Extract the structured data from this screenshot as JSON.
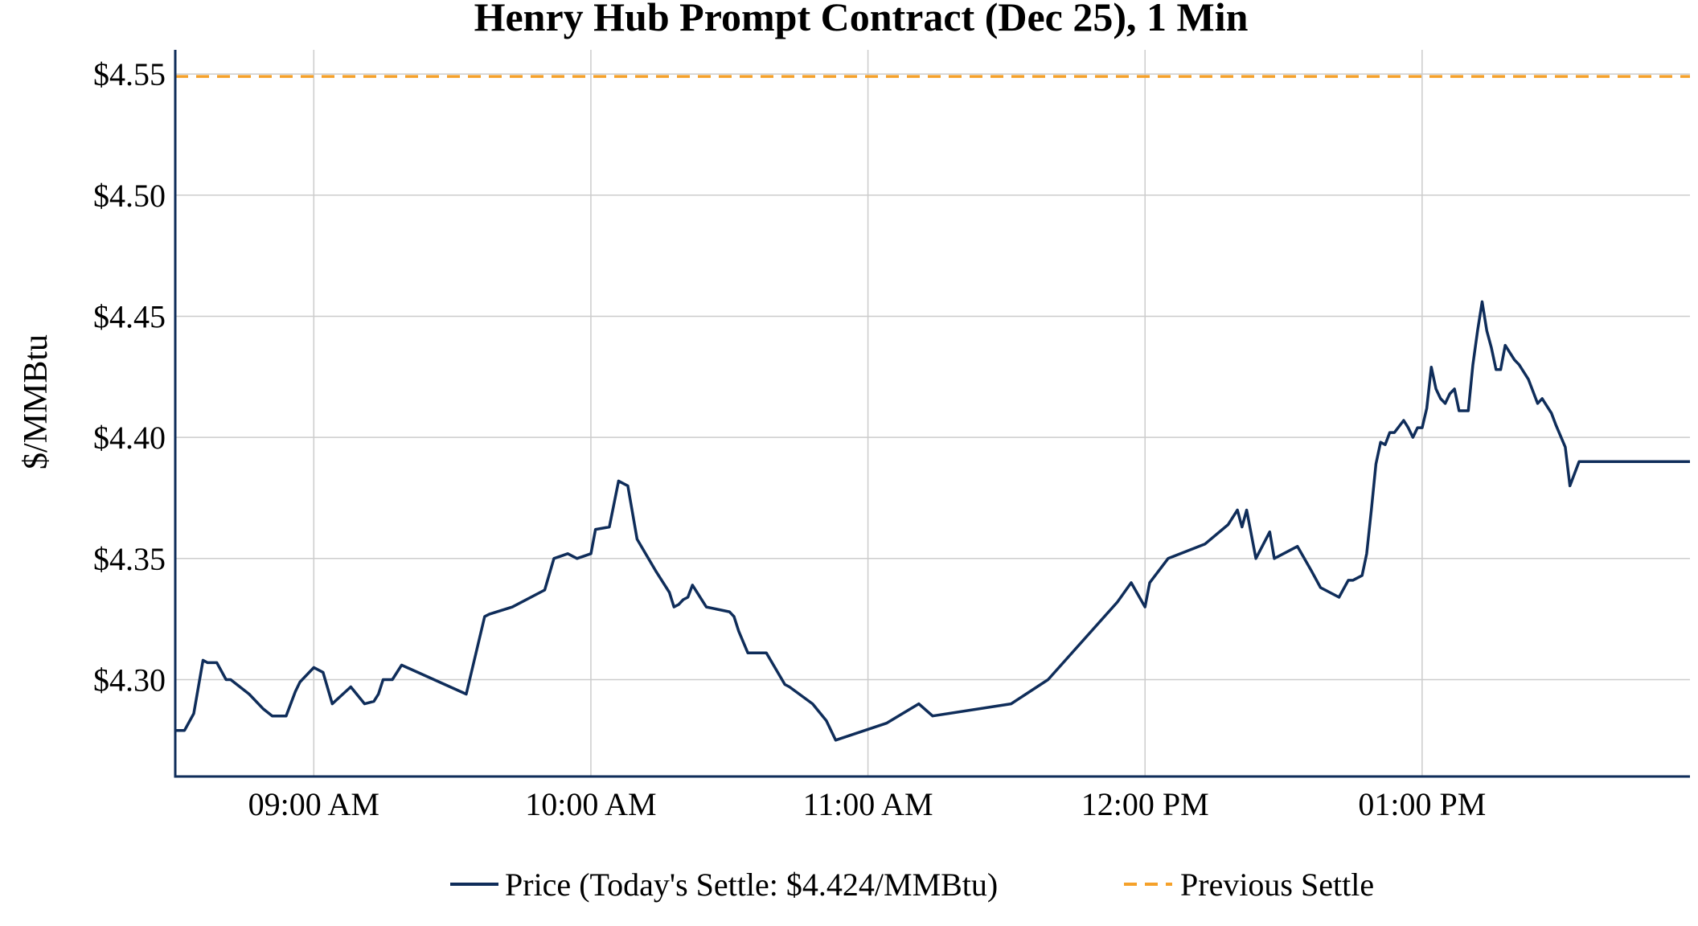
{
  "chart_data": {
    "type": "line",
    "title": "Henry Hub Prompt Contract (Dec 25), 1 Min",
    "ylabel": "$/MMBtu",
    "xlabel": "",
    "x_unit": "time of day",
    "xlim": [
      "08:30",
      "13:58"
    ],
    "ylim": [
      4.26,
      4.56
    ],
    "yticks": [
      4.3,
      4.35,
      4.4,
      4.45,
      4.5,
      4.55
    ],
    "ytick_labels": [
      "$4.30",
      "$4.35",
      "$4.40",
      "$4.45",
      "$4.50",
      "$4.55"
    ],
    "xticks": [
      "09:00",
      "10:00",
      "11:00",
      "12:00",
      "13:00"
    ],
    "xtick_labels": [
      "09:00 AM",
      "10:00 AM",
      "11:00 AM",
      "12:00 PM",
      "01:00 PM"
    ],
    "grid": true,
    "legend_position": "bottom",
    "series": [
      {
        "name": "Price (Today's Settle: $4.424/MMBtu)",
        "style": "solid",
        "color": "#0f2d5a",
        "x": [
          "08:30",
          "08:31",
          "08:32",
          "08:34",
          "08:36",
          "08:37",
          "08:39",
          "08:41",
          "08:42",
          "08:46",
          "08:49",
          "08:51",
          "08:52",
          "08:54",
          "08:56",
          "08:57",
          "09:00",
          "09:02",
          "09:04",
          "09:08",
          "09:11",
          "09:13",
          "09:14",
          "09:15",
          "09:17",
          "09:19",
          "09:33",
          "09:37",
          "09:38",
          "09:43",
          "09:50",
          "09:52",
          "09:55",
          "09:57",
          "10:00",
          "10:01",
          "10:04",
          "10:06",
          "10:08",
          "10:10",
          "10:14",
          "10:17",
          "10:18",
          "10:19",
          "10:20",
          "10:21",
          "10:22",
          "10:25",
          "10:30",
          "10:31",
          "10:32",
          "10:34",
          "10:38",
          "10:42",
          "10:43",
          "10:48",
          "10:51",
          "10:53",
          "11:04",
          "11:11",
          "11:14",
          "11:31",
          "11:39",
          "11:54",
          "11:57",
          "12:00",
          "12:01",
          "12:05",
          "12:13",
          "12:18",
          "12:20",
          "12:21",
          "12:22",
          "12:24",
          "12:27",
          "12:28",
          "12:33",
          "12:36",
          "12:38",
          "12:42",
          "12:44",
          "12:45",
          "12:47",
          "12:48",
          "12:49",
          "12:50",
          "12:51",
          "12:52",
          "12:53",
          "12:54",
          "12:56",
          "12:57",
          "12:58",
          "12:59",
          "13:00",
          "13:01",
          "13:02",
          "13:03",
          "13:04",
          "13:05",
          "13:06",
          "13:07",
          "13:08",
          "13:09",
          "13:10",
          "13:11",
          "13:12",
          "13:13",
          "13:14",
          "13:15",
          "13:16",
          "13:17",
          "13:18",
          "13:20",
          "13:21",
          "13:23",
          "13:25",
          "13:26",
          "13:28",
          "13:29",
          "13:31",
          "13:32",
          "13:33",
          "13:34",
          "13:36",
          "13:37",
          "13:38",
          "13:40",
          "13:42",
          "13:43",
          "13:44",
          "13:45",
          "13:46",
          "13:48",
          "13:49",
          "13:50",
          "13:53",
          "13:54",
          "13:55",
          "13:56",
          "13:57",
          "13:58"
        ],
        "y": [
          4.279,
          4.279,
          4.279,
          4.286,
          4.308,
          4.307,
          4.307,
          4.3,
          4.3,
          4.294,
          4.288,
          4.285,
          4.285,
          4.285,
          4.295,
          4.299,
          4.305,
          4.303,
          4.29,
          4.297,
          4.29,
          4.291,
          4.294,
          4.3,
          4.3,
          4.306,
          4.294,
          4.326,
          4.327,
          4.33,
          4.337,
          4.35,
          4.352,
          4.35,
          4.352,
          4.362,
          4.363,
          4.382,
          4.38,
          4.358,
          4.345,
          4.336,
          4.33,
          4.331,
          4.333,
          4.334,
          4.339,
          4.33,
          4.328,
          4.326,
          4.32,
          4.311,
          4.311,
          4.298,
          4.297,
          4.29,
          4.283,
          4.275,
          4.282,
          4.29,
          4.285,
          4.29,
          4.3,
          4.332,
          4.34,
          4.33,
          4.34,
          4.35,
          4.356,
          4.364,
          4.37,
          4.363,
          4.37,
          4.35,
          4.361,
          4.35,
          4.355,
          4.345,
          4.338,
          4.334,
          4.341,
          4.341,
          4.343,
          4.352,
          4.37,
          4.389,
          4.398,
          4.397,
          4.402,
          4.402,
          4.407,
          4.404,
          4.4,
          4.404,
          4.404,
          4.412,
          4.429,
          4.42,
          4.416,
          4.414,
          4.418,
          4.42,
          4.411,
          4.411,
          4.411,
          4.43,
          4.444,
          4.456,
          4.444,
          4.437,
          4.428,
          4.428,
          4.438,
          4.432,
          4.43,
          4.424,
          4.414,
          4.416,
          4.41,
          4.405,
          4.396,
          4.38,
          4.385,
          4.39,
          4.39,
          4.39,
          4.39,
          4.39,
          4.39,
          4.39,
          4.39,
          4.39,
          4.39,
          4.39,
          4.39,
          4.39,
          4.39,
          4.39,
          4.39,
          4.39,
          4.39,
          4.39
        ]
      },
      {
        "name": "Previous Settle",
        "style": "dashed",
        "color": "#f5a12a",
        "constant_y": 4.549
      }
    ]
  }
}
